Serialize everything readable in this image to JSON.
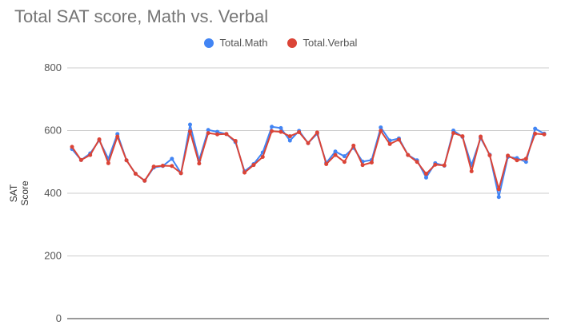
{
  "chart_data": {
    "type": "line",
    "title": "Total SAT score, Math vs. Verbal",
    "ylabel": "SAT Score",
    "xlabel": "",
    "ylim": [
      0,
      800
    ],
    "yticks": [
      "0",
      "200",
      "400",
      "600",
      "800"
    ],
    "grid": true,
    "legend": "top",
    "series": [
      {
        "name": "Total.Math",
        "color": "#4285f4",
        "values": [
          541,
          506,
          527,
          569,
          510,
          589,
          505,
          462,
          440,
          482,
          487,
          510,
          464,
          619,
          505,
          602,
          596,
          589,
          563,
          470,
          493,
          530,
          612,
          608,
          568,
          599,
          560,
          590,
          497,
          533,
          518,
          545,
          501,
          506,
          610,
          568,
          575,
          522,
          505,
          450,
          496,
          488,
          600,
          580,
          490,
          576,
          523,
          388,
          516,
          512,
          500,
          606,
          590
        ]
      },
      {
        "name": "Total.Verbal",
        "color": "#db4437",
        "values": [
          548,
          506,
          522,
          572,
          496,
          581,
          505,
          462,
          440,
          485,
          488,
          487,
          464,
          597,
          495,
          592,
          588,
          589,
          567,
          466,
          490,
          516,
          598,
          596,
          582,
          595,
          560,
          594,
          493,
          522,
          500,
          552,
          490,
          498,
          599,
          557,
          571,
          522,
          500,
          462,
          491,
          489,
          592,
          582,
          470,
          581,
          521,
          413,
          520,
          505,
          510,
          590,
          588
        ]
      }
    ]
  }
}
